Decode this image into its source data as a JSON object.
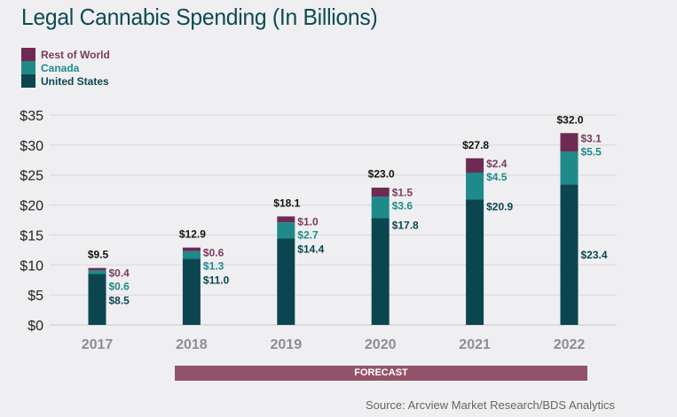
{
  "chart_data": {
    "type": "bar",
    "stacked": true,
    "title": "Legal Cannabis Spending (In Billions)",
    "xlabel": "",
    "ylabel": "",
    "categories": [
      "2017",
      "2018",
      "2019",
      "2020",
      "2021",
      "2022"
    ],
    "series": [
      {
        "name": "United States",
        "color": "#0b4650",
        "values": [
          8.5,
          11.0,
          14.4,
          17.8,
          20.9,
          23.4
        ],
        "labels": [
          "$8.5",
          "$11.0",
          "$14.4",
          "$17.8",
          "$20.9",
          "$23.4"
        ]
      },
      {
        "name": "Canada",
        "color": "#1e8a8a",
        "values": [
          0.6,
          1.3,
          2.7,
          3.6,
          4.5,
          5.5
        ],
        "labels": [
          "$0.6",
          "$1.3",
          "$2.7",
          "$3.6",
          "$4.5",
          "$5.5"
        ]
      },
      {
        "name": "Rest of World",
        "color": "#6e2a53",
        "values": [
          0.4,
          0.6,
          1.0,
          1.5,
          2.4,
          3.1
        ],
        "labels": [
          "$0.4",
          "$0.6",
          "$1.0",
          "$1.5",
          "$2.4",
          "$3.1"
        ]
      }
    ],
    "totals": [
      9.5,
      12.9,
      18.1,
      23.0,
      27.8,
      32.0
    ],
    "total_labels": [
      "$9.5",
      "$12.9",
      "$18.1",
      "$23.0",
      "$27.8",
      "$32.0"
    ],
    "ylim": [
      0,
      35
    ],
    "yticks": [
      0,
      5,
      10,
      15,
      20,
      25,
      30,
      35
    ],
    "ytick_labels": [
      "$0",
      "$5",
      "$10",
      "$15",
      "$20",
      "$25",
      "$30",
      "$35"
    ],
    "grid": true,
    "legend_position": "top-left",
    "legend": [
      "Rest of World",
      "Canada",
      "United States"
    ],
    "annotation": "FORECAST",
    "annotation_span": [
      "2018",
      "2022"
    ],
    "source": "Source: Arcview Market Research/BDS Analytics",
    "label_colors": {
      "United States": "#0b4650",
      "Canada": "#1e8a8a",
      "Rest of World": "#7a3a5e",
      "total": "#111111"
    }
  }
}
